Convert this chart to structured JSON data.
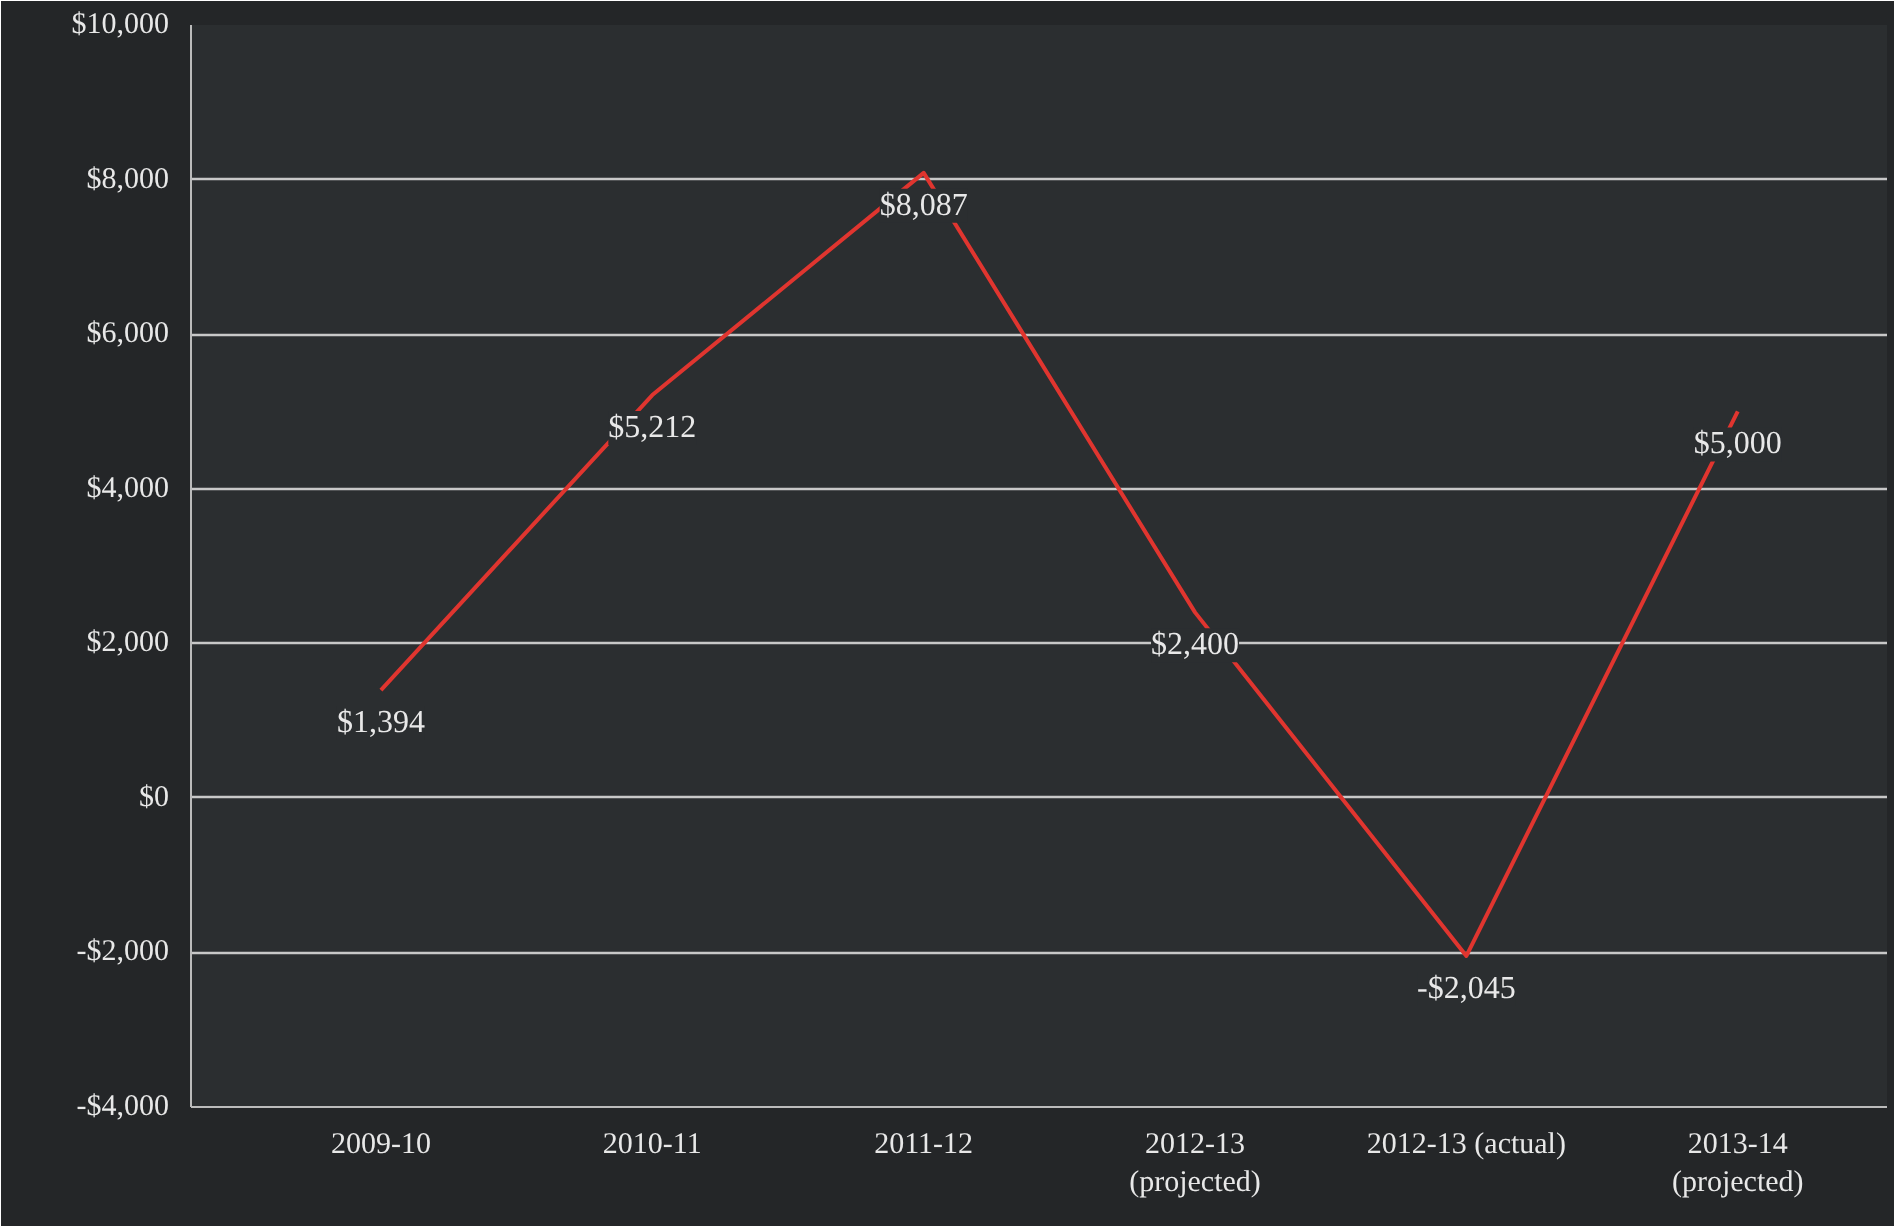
{
  "chart_data": {
    "type": "line",
    "categories": [
      "2009-10",
      "2010-11",
      "2011-12",
      "2012-13\n(projected)",
      "2012-13 (actual)",
      "2013-14\n(projected)"
    ],
    "series": [
      {
        "color": "#e0352f",
        "values": [
          1394,
          5212,
          8087,
          2400,
          -2045,
          5000
        ]
      }
    ],
    "value_labels": [
      "$1,394",
      "$5,212",
      "$8,087",
      "$2,400",
      "-$2,045",
      "$5,000"
    ],
    "ylim": [
      -4000,
      10000
    ],
    "yticks": [
      {
        "value": -4000,
        "label": "-$4,000"
      },
      {
        "value": -2000,
        "label": "-$2,000"
      },
      {
        "value": 0,
        "label": "$0"
      },
      {
        "value": 2000,
        "label": "$2,000"
      },
      {
        "value": 4000,
        "label": "$4,000"
      },
      {
        "value": 6000,
        "label": "$6,000"
      },
      {
        "value": 8000,
        "label": "$8,000"
      },
      {
        "value": 10000,
        "label": "$10,000"
      }
    ],
    "grid": "y",
    "marker": "none",
    "line_style": "solid"
  }
}
